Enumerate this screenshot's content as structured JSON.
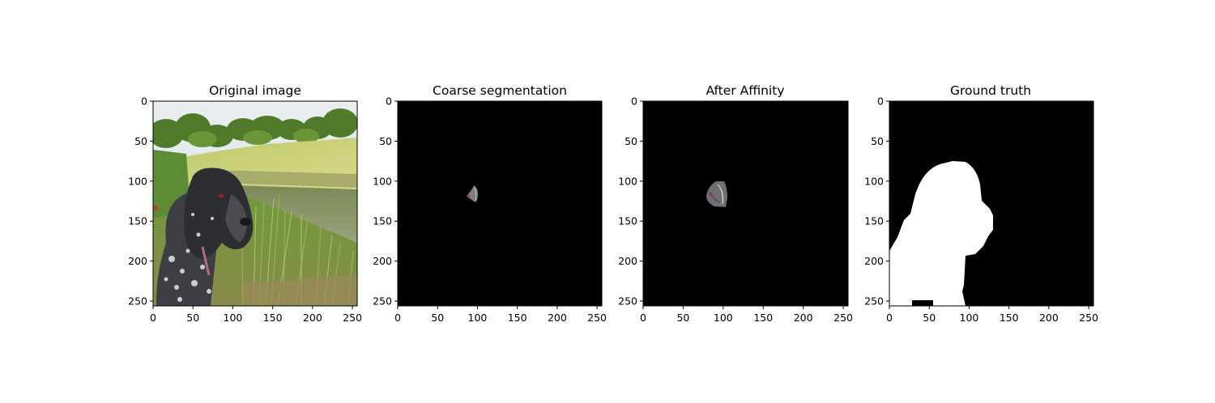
{
  "figure": {
    "panels": [
      {
        "title": "Original image",
        "content": "dog-photo"
      },
      {
        "title": "Coarse segmentation",
        "content": "coarse-mask"
      },
      {
        "title": "After Affinity",
        "content": "affinity-mask"
      },
      {
        "title": "Ground truth",
        "content": "ground-truth-mask"
      }
    ],
    "axes": {
      "x_ticks": [
        "0",
        "50",
        "100",
        "150",
        "200",
        "250"
      ],
      "y_ticks": [
        "0",
        "50",
        "100",
        "150",
        "200",
        "250"
      ]
    }
  }
}
